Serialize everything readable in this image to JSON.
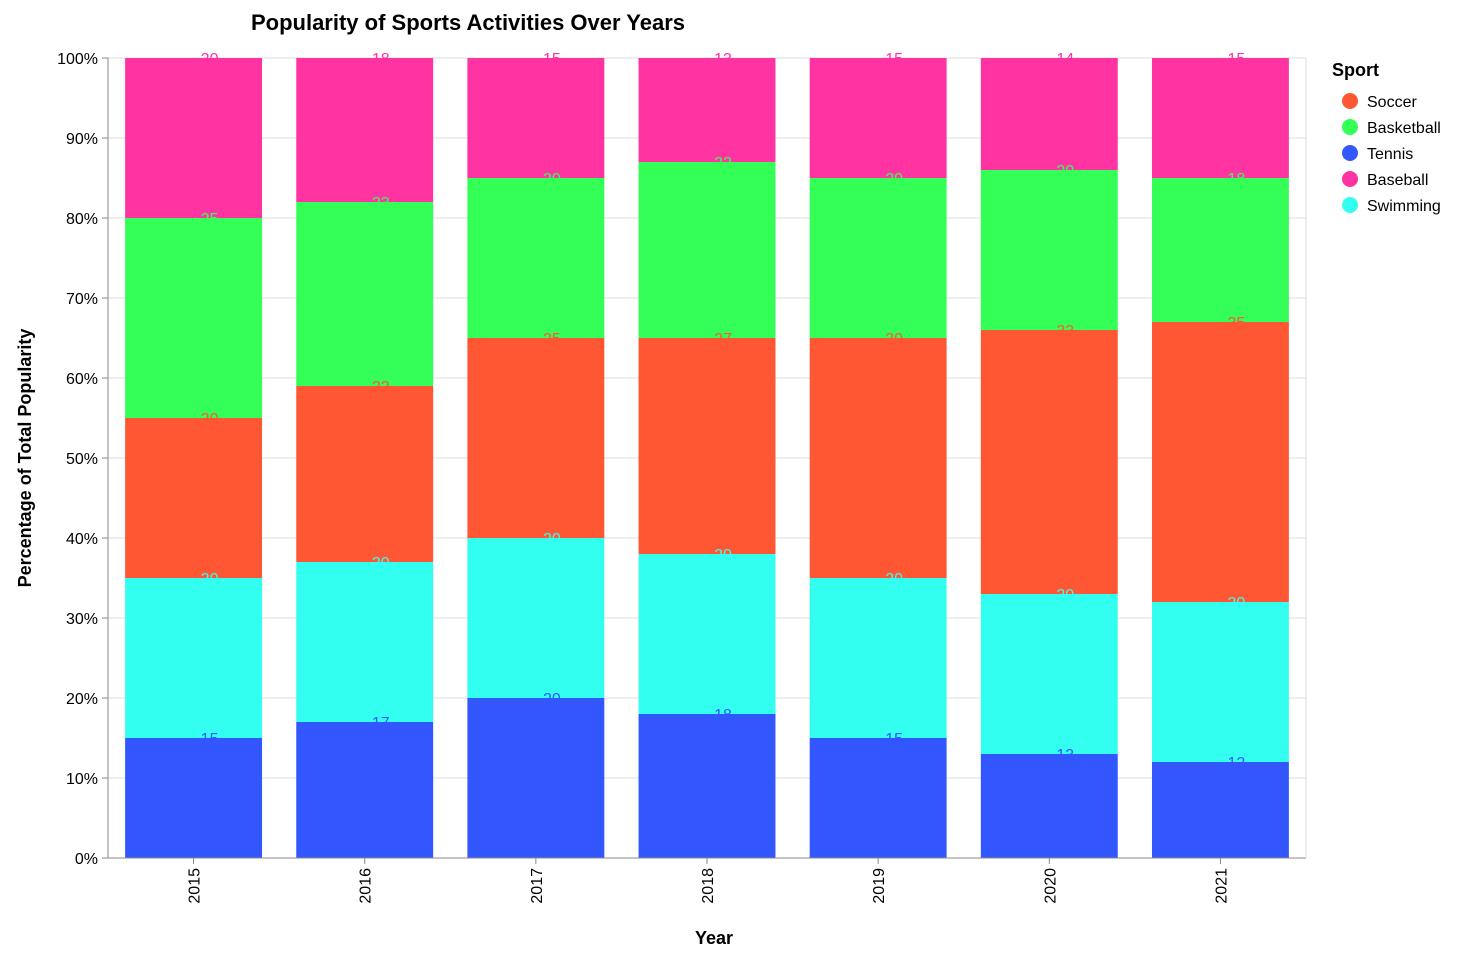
{
  "chart_data": {
    "type": "bar",
    "stacked": "normalize",
    "title": "Popularity of Sports Activities Over Years",
    "xlabel": "Year",
    "ylabel": "Percentage of Total Popularity",
    "categories": [
      "2015",
      "2016",
      "2017",
      "2018",
      "2019",
      "2020",
      "2021"
    ],
    "y_ticks": [
      "0%",
      "10%",
      "20%",
      "30%",
      "40%",
      "50%",
      "60%",
      "70%",
      "80%",
      "90%",
      "100%"
    ],
    "ylim": [
      0,
      100
    ],
    "grid": true,
    "legend": {
      "title": "Sport",
      "position": "top-right"
    },
    "stack_order": [
      "Tennis",
      "Swimming",
      "Soccer",
      "Basketball",
      "Baseball"
    ],
    "series": [
      {
        "name": "Soccer",
        "color": "#ff5733",
        "values": [
          20,
          22,
          25,
          27,
          30,
          33,
          35
        ]
      },
      {
        "name": "Basketball",
        "color": "#33ff57",
        "values": [
          25,
          23,
          20,
          22,
          20,
          20,
          18
        ]
      },
      {
        "name": "Tennis",
        "color": "#3357ff",
        "values": [
          15,
          17,
          20,
          18,
          15,
          13,
          12
        ]
      },
      {
        "name": "Baseball",
        "color": "#ff33a1",
        "values": [
          20,
          18,
          15,
          13,
          15,
          14,
          15
        ]
      },
      {
        "name": "Swimming",
        "color": "#33fff0",
        "values": [
          20,
          20,
          20,
          20,
          20,
          20,
          20
        ]
      }
    ]
  }
}
